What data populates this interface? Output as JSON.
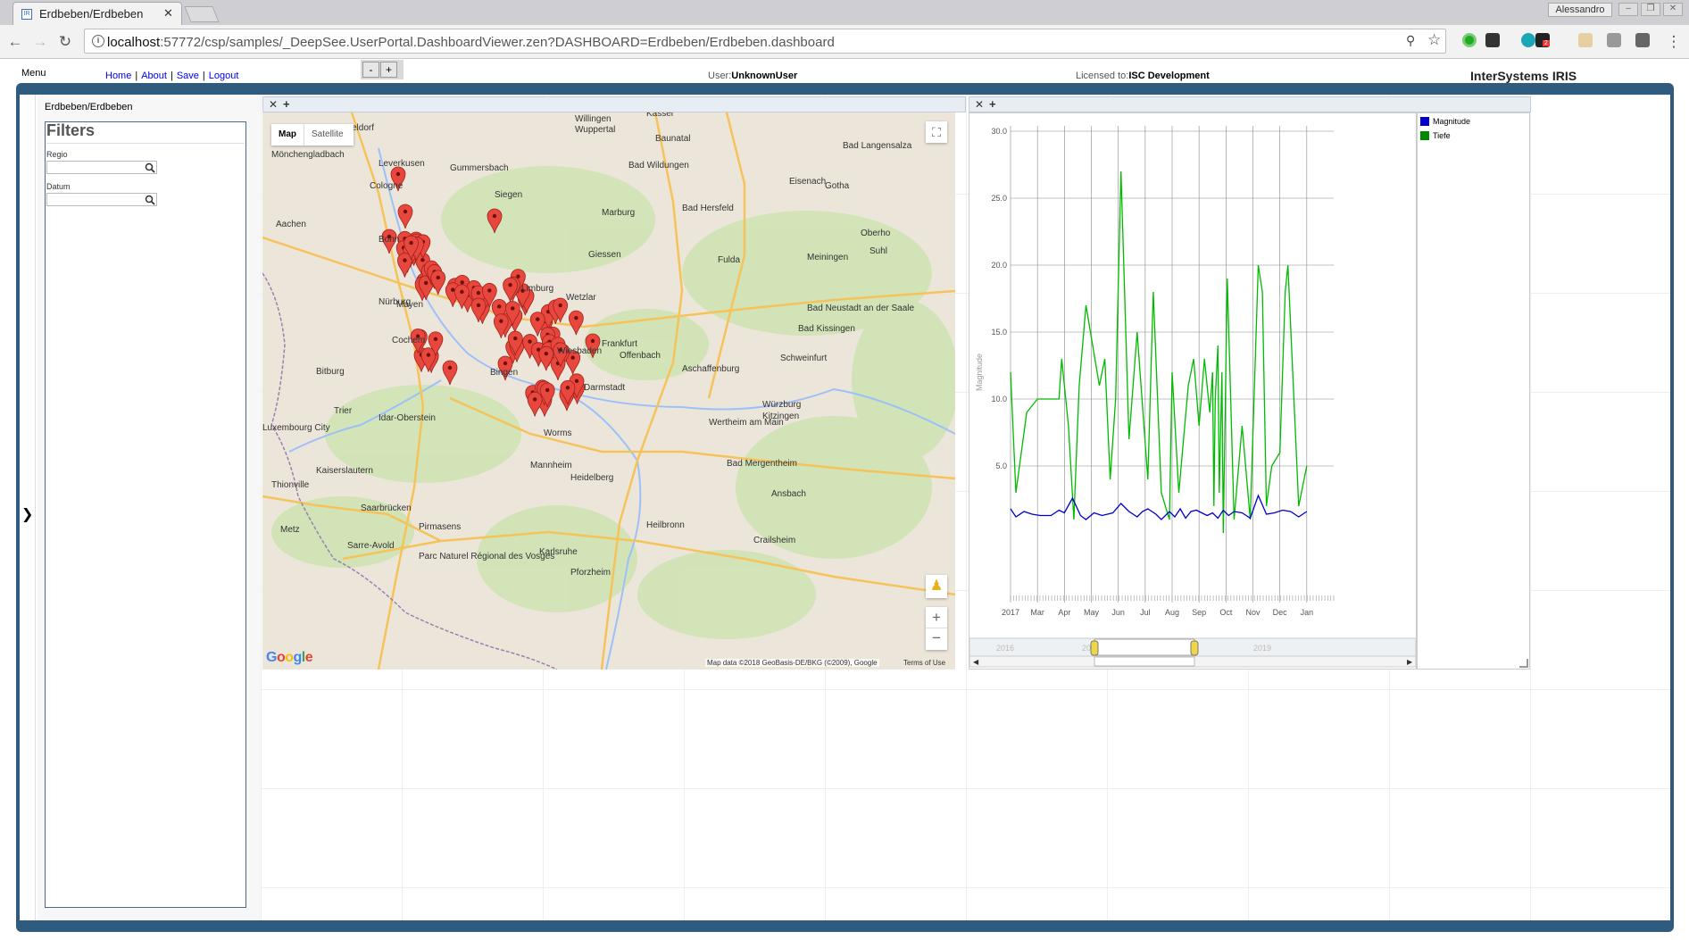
{
  "browser": {
    "tab_title": "Erdbeben/Erdbeben",
    "profile": "Alessandro",
    "url_host": "localhost",
    "url_rest": ":57772/csp/samples/_DeepSee.UserPortal.DashboardViewer.zen?DASHBOARD=Erdbeben/Erdbeben.dashboard",
    "ext_badge": "2"
  },
  "header": {
    "menu": "Menu",
    "links": [
      "Home",
      "About",
      "Save",
      "Logout"
    ],
    "minus": "-",
    "plus": "+",
    "user_label": "User:",
    "user_value": "UnknownUser",
    "license_label": "Licensed to:",
    "license_value": "ISC Development",
    "brand": "InterSystems IRIS"
  },
  "sidebar": {
    "dashboard_name": "Erdbeben/Erdbeben",
    "filters_title": "Filters",
    "filters": [
      {
        "label": "Regio",
        "value": ""
      },
      {
        "label": "Datum",
        "value": ""
      }
    ]
  },
  "map_widget": {
    "close": "✕",
    "add": "+",
    "type_map": "Map",
    "type_satellite": "Satellite",
    "attribution": "Map data ©2018 GeoBasis-DE/BKG (©2009), Google",
    "terms": "Terms of Use",
    "logo": "Google",
    "zoom_in": "+",
    "zoom_out": "−",
    "fullscreen_icon": "fullscreen-icon",
    "pegman_icon": "pegman-icon",
    "cities": [
      "sseldorf",
      "Mönchengladbach",
      "Leverkusen",
      "Gummersbach",
      "Wuppertal",
      "Willingen",
      "Kassel",
      "Baunatal",
      "Cologne",
      "Siegen",
      "Marburg",
      "Bad Hersfeld",
      "Eisenach",
      "Gotha",
      "Bad Wildungen",
      "Bad Langensalza",
      "Aachen",
      "Bonn",
      "Giessen",
      "Fulda",
      "Oberho",
      "Suhl",
      "Meiningen",
      "Wetzlar",
      "Limburg",
      "Mayen",
      "Nürburg",
      "Cochem",
      "Frankfurt",
      "Offenbach",
      "Aschaffenburg",
      "Bad Neustadt an der Saale",
      "Bad Kissingen",
      "Schweinfurt",
      "Bitburg",
      "Bingen",
      "Wiesbaden",
      "Darmstadt",
      "Würzburg",
      "Kitzingen",
      "Trier",
      "Idar-Oberstein",
      "Worms",
      "Wertheim am Main",
      "Bad Mergentheim",
      "Kaiserslautern",
      "Mannheim",
      "Heidelberg",
      "Saarbrücken",
      "Pirmasens",
      "Heilbronn",
      "Crailsheim",
      "Ansbach",
      "Metz",
      "Sarre-Avold",
      "Parc Naturel Régional des Vosges",
      "Karlsruhe",
      "Pforzheim",
      "Luxembourg City",
      "Thionville"
    ],
    "markers": 88
  },
  "chart_widget": {
    "close": "✕",
    "add": "+",
    "legend": [
      {
        "name": "Magnitude",
        "color": "#0000cc"
      },
      {
        "name": "Tiefe",
        "color": "#008800"
      }
    ],
    "navigator_years": [
      "2016",
      "2017",
      "2018",
      "2019"
    ],
    "navigator_scroll_left": "◀",
    "navigator_scroll_right": "▶"
  },
  "chart_data": {
    "type": "line",
    "ylabel": "Magnitude",
    "ylim": [
      0,
      30
    ],
    "yticks": [
      "30.0",
      "25.0",
      "20.0",
      "15.0",
      "10.0",
      "5.0"
    ],
    "x_labels": [
      "2017",
      "Mar",
      "Apr",
      "May",
      "Jun",
      "Jul",
      "Aug",
      "Sep",
      "Oct",
      "Nov",
      "Dec",
      "Jan"
    ],
    "x_range": [
      0,
      12
    ],
    "grid": true,
    "legend_position": "right",
    "series": [
      {
        "name": "Tiefe",
        "color": "#00bb00",
        "points": [
          [
            0.0,
            12.0
          ],
          [
            0.2,
            3.0
          ],
          [
            0.6,
            9.0
          ],
          [
            1.0,
            10.0
          ],
          [
            1.4,
            10.0
          ],
          [
            1.8,
            10.0
          ],
          [
            1.9,
            13.0
          ],
          [
            2.15,
            8.0
          ],
          [
            2.35,
            1.0
          ],
          [
            2.55,
            11.0
          ],
          [
            2.8,
            17.0
          ],
          [
            3.3,
            11.0
          ],
          [
            3.5,
            13.0
          ],
          [
            3.7,
            4.0
          ],
          [
            3.9,
            10.0
          ],
          [
            4.1,
            27.0
          ],
          [
            4.4,
            7.0
          ],
          [
            4.7,
            15.0
          ],
          [
            5.1,
            4.0
          ],
          [
            5.3,
            18.0
          ],
          [
            5.6,
            3.0
          ],
          [
            5.9,
            1.0
          ],
          [
            6.0,
            12.0
          ],
          [
            6.25,
            3.0
          ],
          [
            6.6,
            11.0
          ],
          [
            6.8,
            13.0
          ],
          [
            7.0,
            8.0
          ],
          [
            7.2,
            13.0
          ],
          [
            7.4,
            9.0
          ],
          [
            7.5,
            12.0
          ],
          [
            7.55,
            2.0
          ],
          [
            7.6,
            10.0
          ],
          [
            7.7,
            14.0
          ],
          [
            7.75,
            3.0
          ],
          [
            7.85,
            12.0
          ],
          [
            7.9,
            0.0
          ],
          [
            8.05,
            19.0
          ],
          [
            8.3,
            1.0
          ],
          [
            8.6,
            8.0
          ],
          [
            8.9,
            1.0
          ],
          [
            9.2,
            20.0
          ],
          [
            9.35,
            18.0
          ],
          [
            9.5,
            2.0
          ],
          [
            9.7,
            5.0
          ],
          [
            10.0,
            6.0
          ],
          [
            10.2,
            18.0
          ],
          [
            10.3,
            20.0
          ],
          [
            10.7,
            2.0
          ],
          [
            11.0,
            5.0
          ]
        ]
      },
      {
        "name": "Magnitude",
        "color": "#0000cc",
        "points": [
          [
            0.0,
            1.8
          ],
          [
            0.2,
            1.2
          ],
          [
            0.5,
            1.6
          ],
          [
            0.8,
            1.4
          ],
          [
            1.1,
            1.3
          ],
          [
            1.5,
            1.3
          ],
          [
            1.8,
            1.7
          ],
          [
            2.0,
            1.5
          ],
          [
            2.3,
            2.6
          ],
          [
            2.6,
            1.3
          ],
          [
            2.8,
            1.0
          ],
          [
            3.1,
            1.5
          ],
          [
            3.4,
            1.3
          ],
          [
            3.8,
            1.5
          ],
          [
            4.1,
            2.2
          ],
          [
            4.4,
            1.6
          ],
          [
            4.7,
            1.2
          ],
          [
            4.9,
            1.6
          ],
          [
            5.1,
            1.8
          ],
          [
            5.4,
            1.4
          ],
          [
            5.6,
            1.0
          ],
          [
            5.9,
            1.6
          ],
          [
            6.1,
            1.2
          ],
          [
            6.3,
            1.8
          ],
          [
            6.5,
            1.1
          ],
          [
            6.7,
            1.6
          ],
          [
            6.9,
            1.7
          ],
          [
            7.1,
            1.5
          ],
          [
            7.3,
            1.3
          ],
          [
            7.5,
            1.5
          ],
          [
            7.7,
            1.1
          ],
          [
            7.9,
            1.7
          ],
          [
            8.1,
            1.3
          ],
          [
            8.3,
            1.6
          ],
          [
            8.6,
            1.5
          ],
          [
            8.9,
            1.1
          ],
          [
            9.2,
            2.8
          ],
          [
            9.5,
            1.4
          ],
          [
            9.8,
            1.5
          ],
          [
            10.1,
            1.7
          ],
          [
            10.4,
            1.6
          ],
          [
            10.7,
            1.2
          ],
          [
            11.0,
            1.6
          ]
        ]
      }
    ]
  }
}
